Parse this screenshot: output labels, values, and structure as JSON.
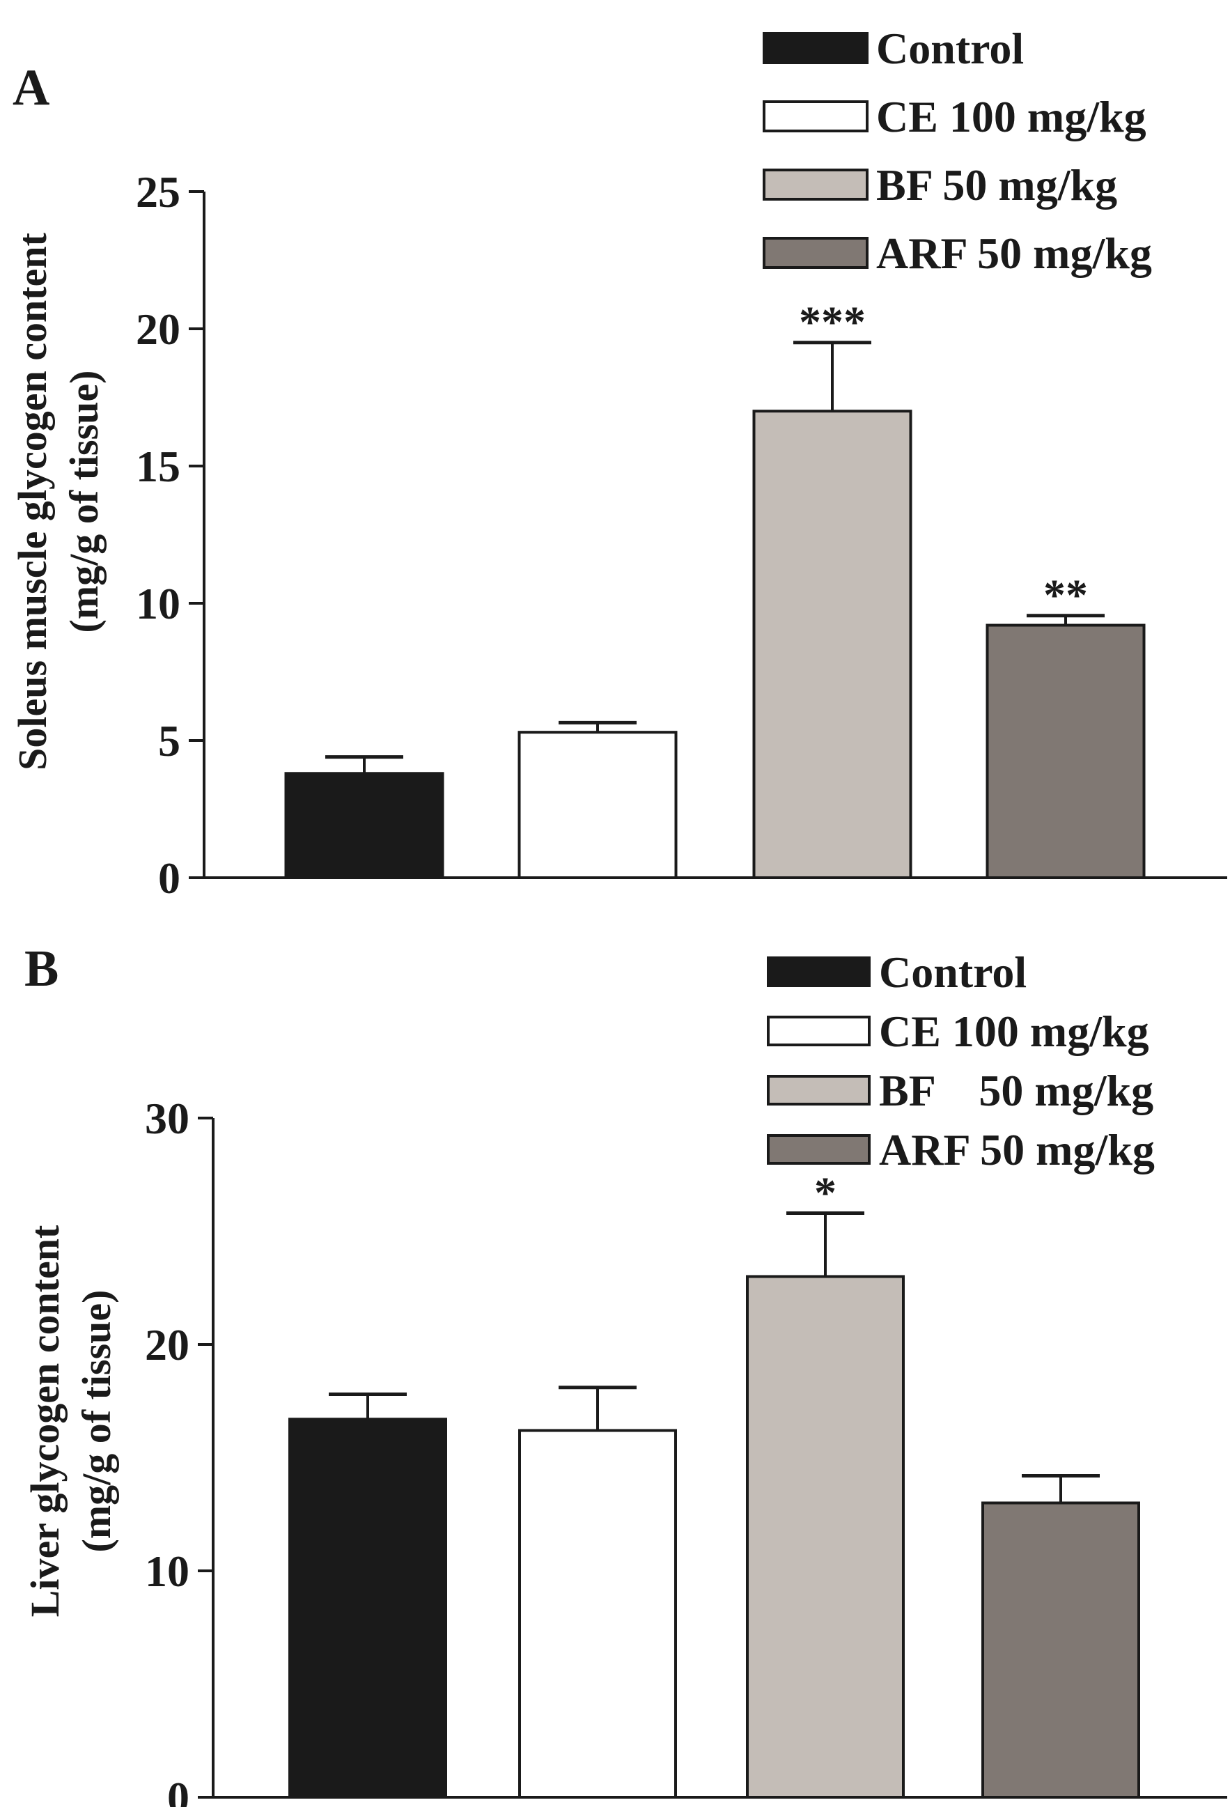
{
  "chart_data": [
    {
      "panel": "A",
      "type": "bar",
      "ylabel_line1": "Soleus muscle glycogen content",
      "ylabel_line2": "(mg/g of tissue)",
      "ylim": [
        0,
        25
      ],
      "yticks": [
        0,
        5,
        10,
        15,
        20,
        25
      ],
      "categories": [
        "Control",
        "CE 100 mg/kg",
        "BF 50 mg/kg",
        "ARF 50 mg/kg"
      ],
      "values": [
        3.8,
        5.3,
        17.0,
        9.2
      ],
      "errors": [
        0.6,
        0.35,
        2.5,
        0.35
      ],
      "significance": [
        "",
        "",
        "***",
        "**"
      ],
      "legend": [
        "Control",
        "CE 100 mg/kg",
        "BF 50 mg/kg",
        "ARF 50 mg/kg"
      ]
    },
    {
      "panel": "B",
      "type": "bar",
      "ylabel_line1": "Liver glycogen content",
      "ylabel_line2": "(mg/g of tissue)",
      "ylim": [
        0,
        30
      ],
      "yticks": [
        0,
        10,
        20,
        30
      ],
      "categories": [
        "Control",
        "CE 100 mg/kg",
        "BF 50 mg/kg",
        "ARF 50 mg/kg"
      ],
      "values": [
        16.7,
        16.2,
        23.0,
        13.0
      ],
      "errors": [
        1.1,
        1.9,
        2.8,
        1.2
      ],
      "significance": [
        "",
        "",
        "*",
        ""
      ],
      "legend": [
        "Control",
        "CE 100 mg/kg",
        "BF    50 mg/kg",
        "ARF 50 mg/kg"
      ]
    }
  ],
  "colors": {
    "series": [
      "#1a1a1a",
      "#ffffff",
      "#c4bdb7",
      "#807873"
    ],
    "stroke": "#1a1a1a"
  }
}
